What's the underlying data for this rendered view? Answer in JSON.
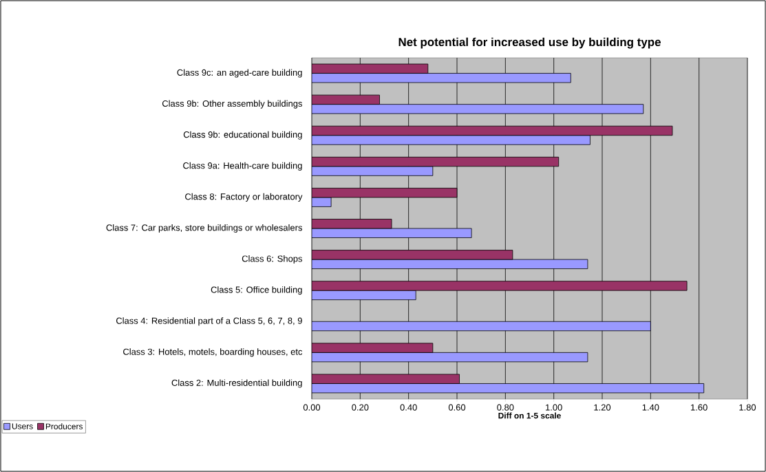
{
  "chart_data": {
    "type": "bar",
    "orientation": "horizontal",
    "title": "Net potential for increased use by building type",
    "xlabel": "Diff on 1-5 scale",
    "categories": [
      "Class 9c: an aged-care building",
      "Class 9b: Other assembly buildings",
      "Class 9b: educational building",
      "Class 9a: Health-care building",
      "Class 8: Factory or laboratory",
      "Class 7: Car parks, store buildings or wholesalers",
      "Class 6: Shops",
      "Class 5: Office building",
      "Class 4: Residential part of a Class 5, 6, 7, 8, 9",
      "Class 3: Hotels, motels, boarding houses, etc",
      "Class 2: Multi-residential building"
    ],
    "series": [
      {
        "name": "Users",
        "color": "#9999ff",
        "values": [
          1.07,
          1.37,
          1.15,
          0.5,
          0.08,
          0.66,
          1.14,
          0.43,
          1.4,
          1.14,
          1.62
        ]
      },
      {
        "name": "Producers",
        "color": "#993366",
        "values": [
          0.48,
          0.28,
          1.49,
          1.02,
          0.6,
          0.33,
          0.83,
          1.55,
          null,
          0.5,
          0.61
        ]
      }
    ],
    "xlim": [
      0,
      1.8
    ],
    "xticks": [
      {
        "value": 0,
        "label": "0.00"
      },
      {
        "value": 0.2,
        "label": "0.20"
      },
      {
        "value": 0.4,
        "label": "0.40"
      },
      {
        "value": 0.6,
        "label": "0.60"
      },
      {
        "value": 0.8,
        "label": "0.80"
      },
      {
        "value": 1.0,
        "label": "1.00"
      },
      {
        "value": 1.2,
        "label": "1.20"
      },
      {
        "value": 1.4,
        "label": "1.40"
      },
      {
        "value": 1.6,
        "label": "1.60"
      },
      {
        "value": 1.8,
        "label": "1.80"
      }
    ],
    "grid": "x",
    "legend": "bottom left"
  }
}
